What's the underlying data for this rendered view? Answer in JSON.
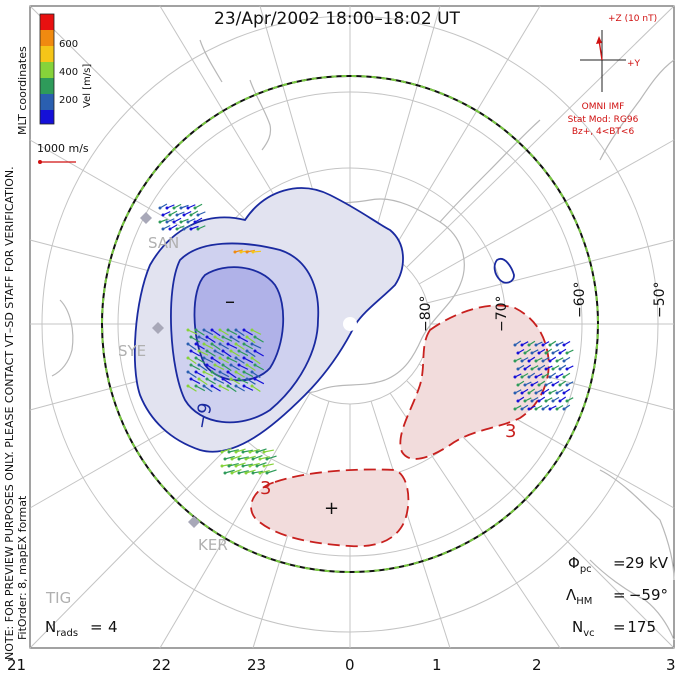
{
  "title": "23/Apr/2002 18:00–18:02 UT",
  "colorbar": {
    "label": "Vel [m/s]",
    "ticks": [
      "600",
      "400",
      "200"
    ],
    "colors": [
      "#e81010",
      "#f08a10",
      "#f5c518",
      "#86d33a",
      "#2e9b5a",
      "#2a5fb0",
      "#1510d8"
    ]
  },
  "side_note_coords": "MLT coordinates",
  "side_note_preview": "NOTE: FOR PREVIEW PURPOSES ONLY. PLEASE CONTACT VT–SD STAFF FOR VERIFICATION.",
  "side_note_fit": "FitOrder: 8, mapEX format",
  "vector_scale": "1000 m/s",
  "imf": {
    "z_label": "+Z (10 nT)",
    "y_label": "+Y",
    "source": "OMNI IMF",
    "model": "Stat Mod: RG96",
    "condition": "Bz+, 4<BT<6"
  },
  "stations": [
    "SAN",
    "SYE",
    "KER",
    "TIG"
  ],
  "lat_labels": [
    "−80°",
    "−70°",
    "−60°",
    "−50°"
  ],
  "mlt_labels": [
    "21",
    "22",
    "23",
    "0",
    "1",
    "2",
    "3"
  ],
  "contour_labels": [
    "−9",
    "3",
    "3"
  ],
  "extrema": {
    "min": "–",
    "max": "+"
  },
  "stats": {
    "phi_pc": "29 kV",
    "lambda_hm": "−59°",
    "n_vc": "175",
    "n_rads": "4"
  },
  "colors": {
    "neg_contour": "#1a2aa0",
    "pos_contour": "#c8201e",
    "hm_boundary_dash": "#78c840",
    "grid": "#bbbbbb",
    "coast": "#b8b8b8",
    "neg_fill_outer": "#e2e3f0",
    "neg_fill_mid": "#cfd1ef",
    "neg_fill_inner": "#b0b2e8",
    "pos_fill": "#f2dcdc"
  }
}
